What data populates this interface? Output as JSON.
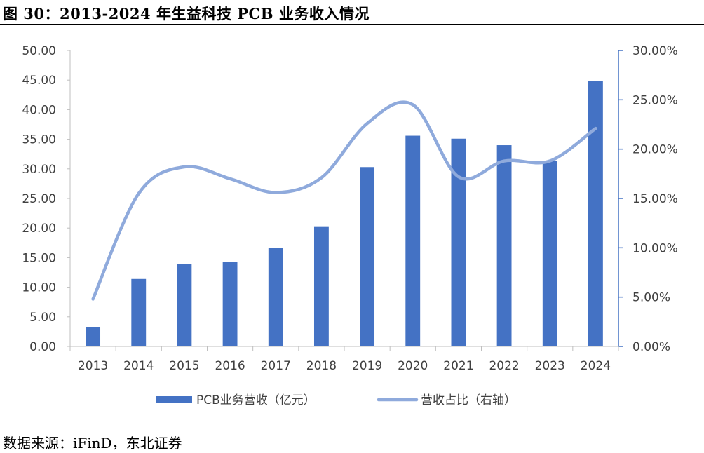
{
  "header": {
    "title": "图 30：2013-2024 年生益科技 PCB 业务收入情况"
  },
  "footer": {
    "source": "数据来源：iFinD，东北证券"
  },
  "colors": {
    "bar": "#4472C4",
    "line": "#8FAADC",
    "axis": "#4472C4",
    "text": "#404040"
  },
  "chart_data": {
    "type": "bar",
    "title": "",
    "categories": [
      "2013",
      "2014",
      "2015",
      "2016",
      "2017",
      "2018",
      "2019",
      "2020",
      "2021",
      "2022",
      "2023",
      "2024"
    ],
    "series": [
      {
        "name": "PCB业务营收（亿元）",
        "type": "bar",
        "axis": "left",
        "values": [
          3.2,
          11.4,
          13.9,
          14.3,
          16.7,
          20.3,
          30.3,
          35.6,
          35.1,
          34.0,
          31.3,
          44.8
        ]
      },
      {
        "name": "营收占比（右轴）",
        "type": "line",
        "axis": "right",
        "smooth": true,
        "values": [
          0.048,
          0.155,
          0.182,
          0.17,
          0.156,
          0.171,
          0.226,
          0.245,
          0.172,
          0.188,
          0.188,
          0.221
        ]
      }
    ],
    "y_left": {
      "ylim": [
        0,
        50
      ],
      "ticks": [
        "0.00",
        "5.00",
        "10.00",
        "15.00",
        "20.00",
        "25.00",
        "30.00",
        "35.00",
        "40.00",
        "45.00",
        "50.00"
      ]
    },
    "y_right": {
      "ylim": [
        0,
        0.3
      ],
      "ticks": [
        "0.00%",
        "5.00%",
        "10.00%",
        "15.00%",
        "20.00%",
        "25.00%",
        "30.00%"
      ]
    },
    "legend": {
      "position": "bottom"
    },
    "grid": false
  }
}
